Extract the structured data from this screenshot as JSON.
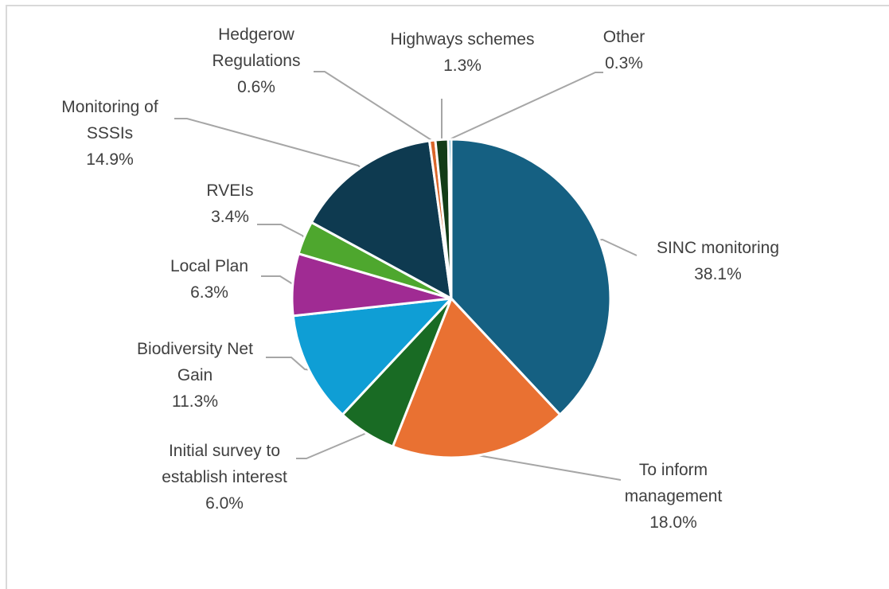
{
  "chart_data": {
    "type": "pie",
    "title": "",
    "slices": [
      {
        "key": "sinc",
        "label_lines": [
          "SINC monitoring"
        ],
        "pct_label": "38.1%",
        "value": 38.1,
        "color": "#156082"
      },
      {
        "key": "inform",
        "label_lines": [
          "To inform",
          "management"
        ],
        "pct_label": "18.0%",
        "value": 18.0,
        "color": "#e97132"
      },
      {
        "key": "initial",
        "label_lines": [
          "Initial survey to",
          "establish interest"
        ],
        "pct_label": "6.0%",
        "value": 6.0,
        "color": "#196b24"
      },
      {
        "key": "bng",
        "label_lines": [
          "Biodiversity Net",
          "Gain"
        ],
        "pct_label": "11.3%",
        "value": 11.3,
        "color": "#0f9ed5"
      },
      {
        "key": "localplan",
        "label_lines": [
          "Local Plan"
        ],
        "pct_label": "6.3%",
        "value": 6.3,
        "color": "#a02b93"
      },
      {
        "key": "rveis",
        "label_lines": [
          "RVEIs"
        ],
        "pct_label": "3.4%",
        "value": 3.4,
        "color": "#4ea72e"
      },
      {
        "key": "sssi",
        "label_lines": [
          "Monitoring of",
          "SSSIs"
        ],
        "pct_label": "14.9%",
        "value": 14.9,
        "color": "#0e3a50"
      },
      {
        "key": "hedgerow",
        "label_lines": [
          "Hedgerow",
          "Regulations"
        ],
        "pct_label": "0.6%",
        "value": 0.6,
        "color": "#d9662a"
      },
      {
        "key": "highways",
        "label_lines": [
          "Highways schemes"
        ],
        "pct_label": "1.3%",
        "value": 1.3,
        "color": "#123c17"
      },
      {
        "key": "other",
        "label_lines": [
          "Other"
        ],
        "pct_label": "0.3%",
        "value": 0.3,
        "color": "#0c7fae"
      }
    ],
    "legend": "none",
    "start_angle": "12 o'clock",
    "direction": "clockwise"
  }
}
